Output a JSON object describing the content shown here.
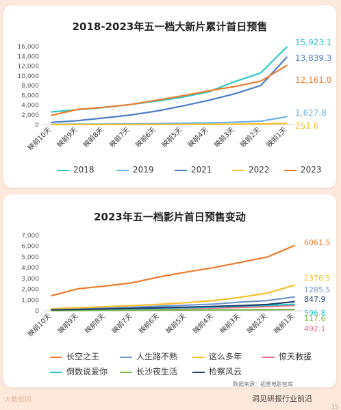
{
  "chart_data": [
    {
      "type": "line",
      "title": "2018-2023年五一档大新片累计首日预售",
      "categories": [
        "映前10天",
        "映前9天",
        "映前8天",
        "映前7天",
        "映前6天",
        "映前5天",
        "映前4天",
        "映前3天",
        "映前2天",
        "映前1天"
      ],
      "y_ticks": [
        "0",
        "2,000",
        "4,000",
        "6,000",
        "8,000",
        "10,000",
        "12,000",
        "14,000",
        "16,000"
      ],
      "ylim": [
        0,
        16000
      ],
      "legend_position": "bottom",
      "grid": false,
      "series": [
        {
          "name": "2018",
          "color": "#2ec7c9",
          "values": [
            2600,
            3050,
            3500,
            4100,
            4800,
            5600,
            6700,
            8800,
            10600,
            15923.1
          ],
          "end_label": "15,923.1"
        },
        {
          "name": "2019",
          "color": "#6bb3e8",
          "values": [
            50,
            80,
            110,
            150,
            200,
            260,
            350,
            480,
            700,
            1627.8
          ],
          "end_label": "1,627.8"
        },
        {
          "name": "2021",
          "color": "#4a7cc9",
          "values": [
            450,
            800,
            1350,
            1950,
            2750,
            3800,
            4950,
            6300,
            8000,
            13839.3
          ],
          "end_label": "13,839.3"
        },
        {
          "name": "2022",
          "color": "#f5c02c",
          "values": [
            5,
            8,
            12,
            18,
            25,
            35,
            50,
            80,
            120,
            251.6
          ],
          "end_label": "251.6"
        },
        {
          "name": "2023",
          "color": "#ee7b2b",
          "values": [
            1900,
            3100,
            3550,
            4100,
            5000,
            5900,
            6900,
            7800,
            8900,
            12161.0
          ],
          "end_label": "12,161.0"
        }
      ]
    },
    {
      "type": "line",
      "title": "2023年五一档影片首日预售变动",
      "categories": [
        "映前10天",
        "映前9天",
        "映前8天",
        "映前7天",
        "映前6天",
        "映前5天",
        "映前4天",
        "映前3天",
        "映前2天",
        "映前1天"
      ],
      "y_ticks": [
        "0",
        "1,000",
        "2,000",
        "3,000",
        "4,000",
        "5,000",
        "6,000",
        "7,000"
      ],
      "ylim": [
        0,
        7000
      ],
      "legend_position": "bottom",
      "grid": false,
      "source": "数据来源：拓普电影智库",
      "series": [
        {
          "name": "长空之王",
          "color": "#ee7b2b",
          "values": [
            1400,
            2050,
            2300,
            2600,
            3150,
            3600,
            4000,
            4500,
            5000,
            6061.5
          ],
          "end_label": "6061.5"
        },
        {
          "name": "人生路不熟",
          "color": "#6f95d0",
          "values": [
            120,
            180,
            240,
            320,
            420,
            520,
            620,
            800,
            950,
            1285.5
          ],
          "end_label": "1285.5"
        },
        {
          "name": "这么多年",
          "color": "#f5c02c",
          "values": [
            180,
            280,
            380,
            480,
            600,
            750,
            950,
            1250,
            1650,
            2376.5
          ],
          "end_label": "2376.5"
        },
        {
          "name": "惊天救援",
          "color": "#ee6b8a",
          "values": [
            40,
            60,
            90,
            120,
            160,
            210,
            260,
            320,
            390,
            492.1
          ],
          "end_label": "492.1"
        },
        {
          "name": "倒数说爱你",
          "color": "#2ec7c9",
          "values": [
            60,
            90,
            130,
            170,
            220,
            280,
            340,
            420,
            500,
            596.8
          ],
          "end_label": "596.8"
        },
        {
          "name": "长沙夜生活",
          "color": "#7ab648",
          "values": [
            15,
            25,
            35,
            45,
            55,
            65,
            75,
            85,
            100,
            117.6
          ],
          "end_label": "117.6"
        },
        {
          "name": "检察风云",
          "color": "#1f3f6e",
          "values": [
            80,
            120,
            170,
            220,
            280,
            340,
            400,
            480,
            580,
            847.9
          ],
          "end_label": "847.9"
        }
      ]
    }
  ],
  "footer": {
    "left_watermark": "大数据网",
    "right_text": "洞见研报行业前沿",
    "page_number": "15"
  }
}
